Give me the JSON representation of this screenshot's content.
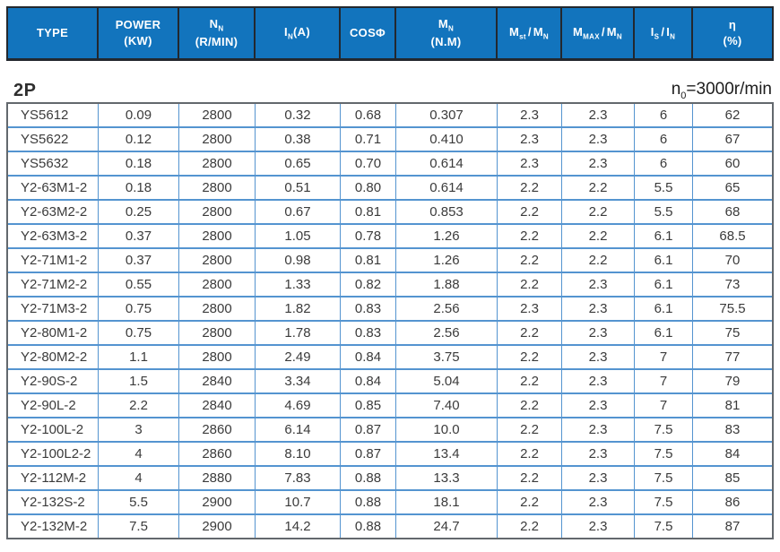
{
  "colors": {
    "header_bg": "#1274bd",
    "header_text": "#ffffff",
    "header_divider": "#23282e",
    "grid_blue": "#5494d0",
    "outer_border": "#63686d",
    "body_text": "#3b3b3b"
  },
  "header": {
    "type": {
      "label": "TYPE"
    },
    "power": {
      "line1": "POWER",
      "line2": "(KW)"
    },
    "speed": {
      "sym": "N",
      "sub": "N",
      "line2": "(R/MIN)"
    },
    "current": {
      "sym": "I",
      "sub": "N",
      "suffix": "(A)"
    },
    "cosphi": {
      "label": "COSΦ"
    },
    "torque": {
      "sym": "M",
      "sub": "N",
      "line2": "(N.M)"
    },
    "mst_mn": {
      "sym1": "M",
      "sub1": "st",
      "sep": "/",
      "sym2": "M",
      "sub2": "N"
    },
    "mmax_mn": {
      "sym1": "M",
      "sub1": "MAX",
      "sep": "/",
      "sym2": "M",
      "sub2": "N"
    },
    "is_in": {
      "sym1": "I",
      "sub1": "S",
      "sep": "/",
      "sym2": "I",
      "sub2": "N"
    },
    "eta": {
      "line1": "η",
      "line2": "(%)"
    }
  },
  "section": {
    "label": "2P",
    "note_sym": "n",
    "note_sub": "0",
    "note_rest": "=3000r/min"
  },
  "table": {
    "rows": [
      [
        "YS5612",
        "0.09",
        "2800",
        "0.32",
        "0.68",
        "0.307",
        "2.3",
        "2.3",
        "6",
        "62"
      ],
      [
        "YS5622",
        "0.12",
        "2800",
        "0.38",
        "0.71",
        "0.410",
        "2.3",
        "2.3",
        "6",
        "67"
      ],
      [
        "YS5632",
        "0.18",
        "2800",
        "0.65",
        "0.70",
        "0.614",
        "2.3",
        "2.3",
        "6",
        "60"
      ],
      [
        "Y2-63M1-2",
        "0.18",
        "2800",
        "0.51",
        "0.80",
        "0.614",
        "2.2",
        "2.2",
        "5.5",
        "65"
      ],
      [
        "Y2-63M2-2",
        "0.25",
        "2800",
        "0.67",
        "0.81",
        "0.853",
        "2.2",
        "2.2",
        "5.5",
        "68"
      ],
      [
        "Y2-63M3-2",
        "0.37",
        "2800",
        "1.05",
        "0.78",
        "1.26",
        "2.2",
        "2.2",
        "6.1",
        "68.5"
      ],
      [
        "Y2-71M1-2",
        "0.37",
        "2800",
        "0.98",
        "0.81",
        "1.26",
        "2.2",
        "2.2",
        "6.1",
        "70"
      ],
      [
        "Y2-71M2-2",
        "0.55",
        "2800",
        "1.33",
        "0.82",
        "1.88",
        "2.2",
        "2.3",
        "6.1",
        "73"
      ],
      [
        "Y2-71M3-2",
        "0.75",
        "2800",
        "1.82",
        "0.83",
        "2.56",
        "2.3",
        "2.3",
        "6.1",
        "75.5"
      ],
      [
        "Y2-80M1-2",
        "0.75",
        "2800",
        "1.78",
        "0.83",
        "2.56",
        "2.2",
        "2.3",
        "6.1",
        "75"
      ],
      [
        "Y2-80M2-2",
        "1.1",
        "2800",
        "2.49",
        "0.84",
        "3.75",
        "2.2",
        "2.3",
        "7",
        "77"
      ],
      [
        "Y2-90S-2",
        "1.5",
        "2840",
        "3.34",
        "0.84",
        "5.04",
        "2.2",
        "2.3",
        "7",
        "79"
      ],
      [
        "Y2-90L-2",
        "2.2",
        "2840",
        "4.69",
        "0.85",
        "7.40",
        "2.2",
        "2.3",
        "7",
        "81"
      ],
      [
        "Y2-100L-2",
        "3",
        "2860",
        "6.14",
        "0.87",
        "10.0",
        "2.2",
        "2.3",
        "7.5",
        "83"
      ],
      [
        "Y2-100L2-2",
        "4",
        "2860",
        "8.10",
        "0.87",
        "13.4",
        "2.2",
        "2.3",
        "7.5",
        "84"
      ],
      [
        "Y2-112M-2",
        "4",
        "2880",
        "7.83",
        "0.88",
        "13.3",
        "2.2",
        "2.3",
        "7.5",
        "85"
      ],
      [
        "Y2-132S-2",
        "5.5",
        "2900",
        "10.7",
        "0.88",
        "18.1",
        "2.2",
        "2.3",
        "7.5",
        "86"
      ],
      [
        "Y2-132M-2",
        "7.5",
        "2900",
        "14.2",
        "0.88",
        "24.7",
        "2.2",
        "2.3",
        "7.5",
        "87"
      ]
    ]
  }
}
